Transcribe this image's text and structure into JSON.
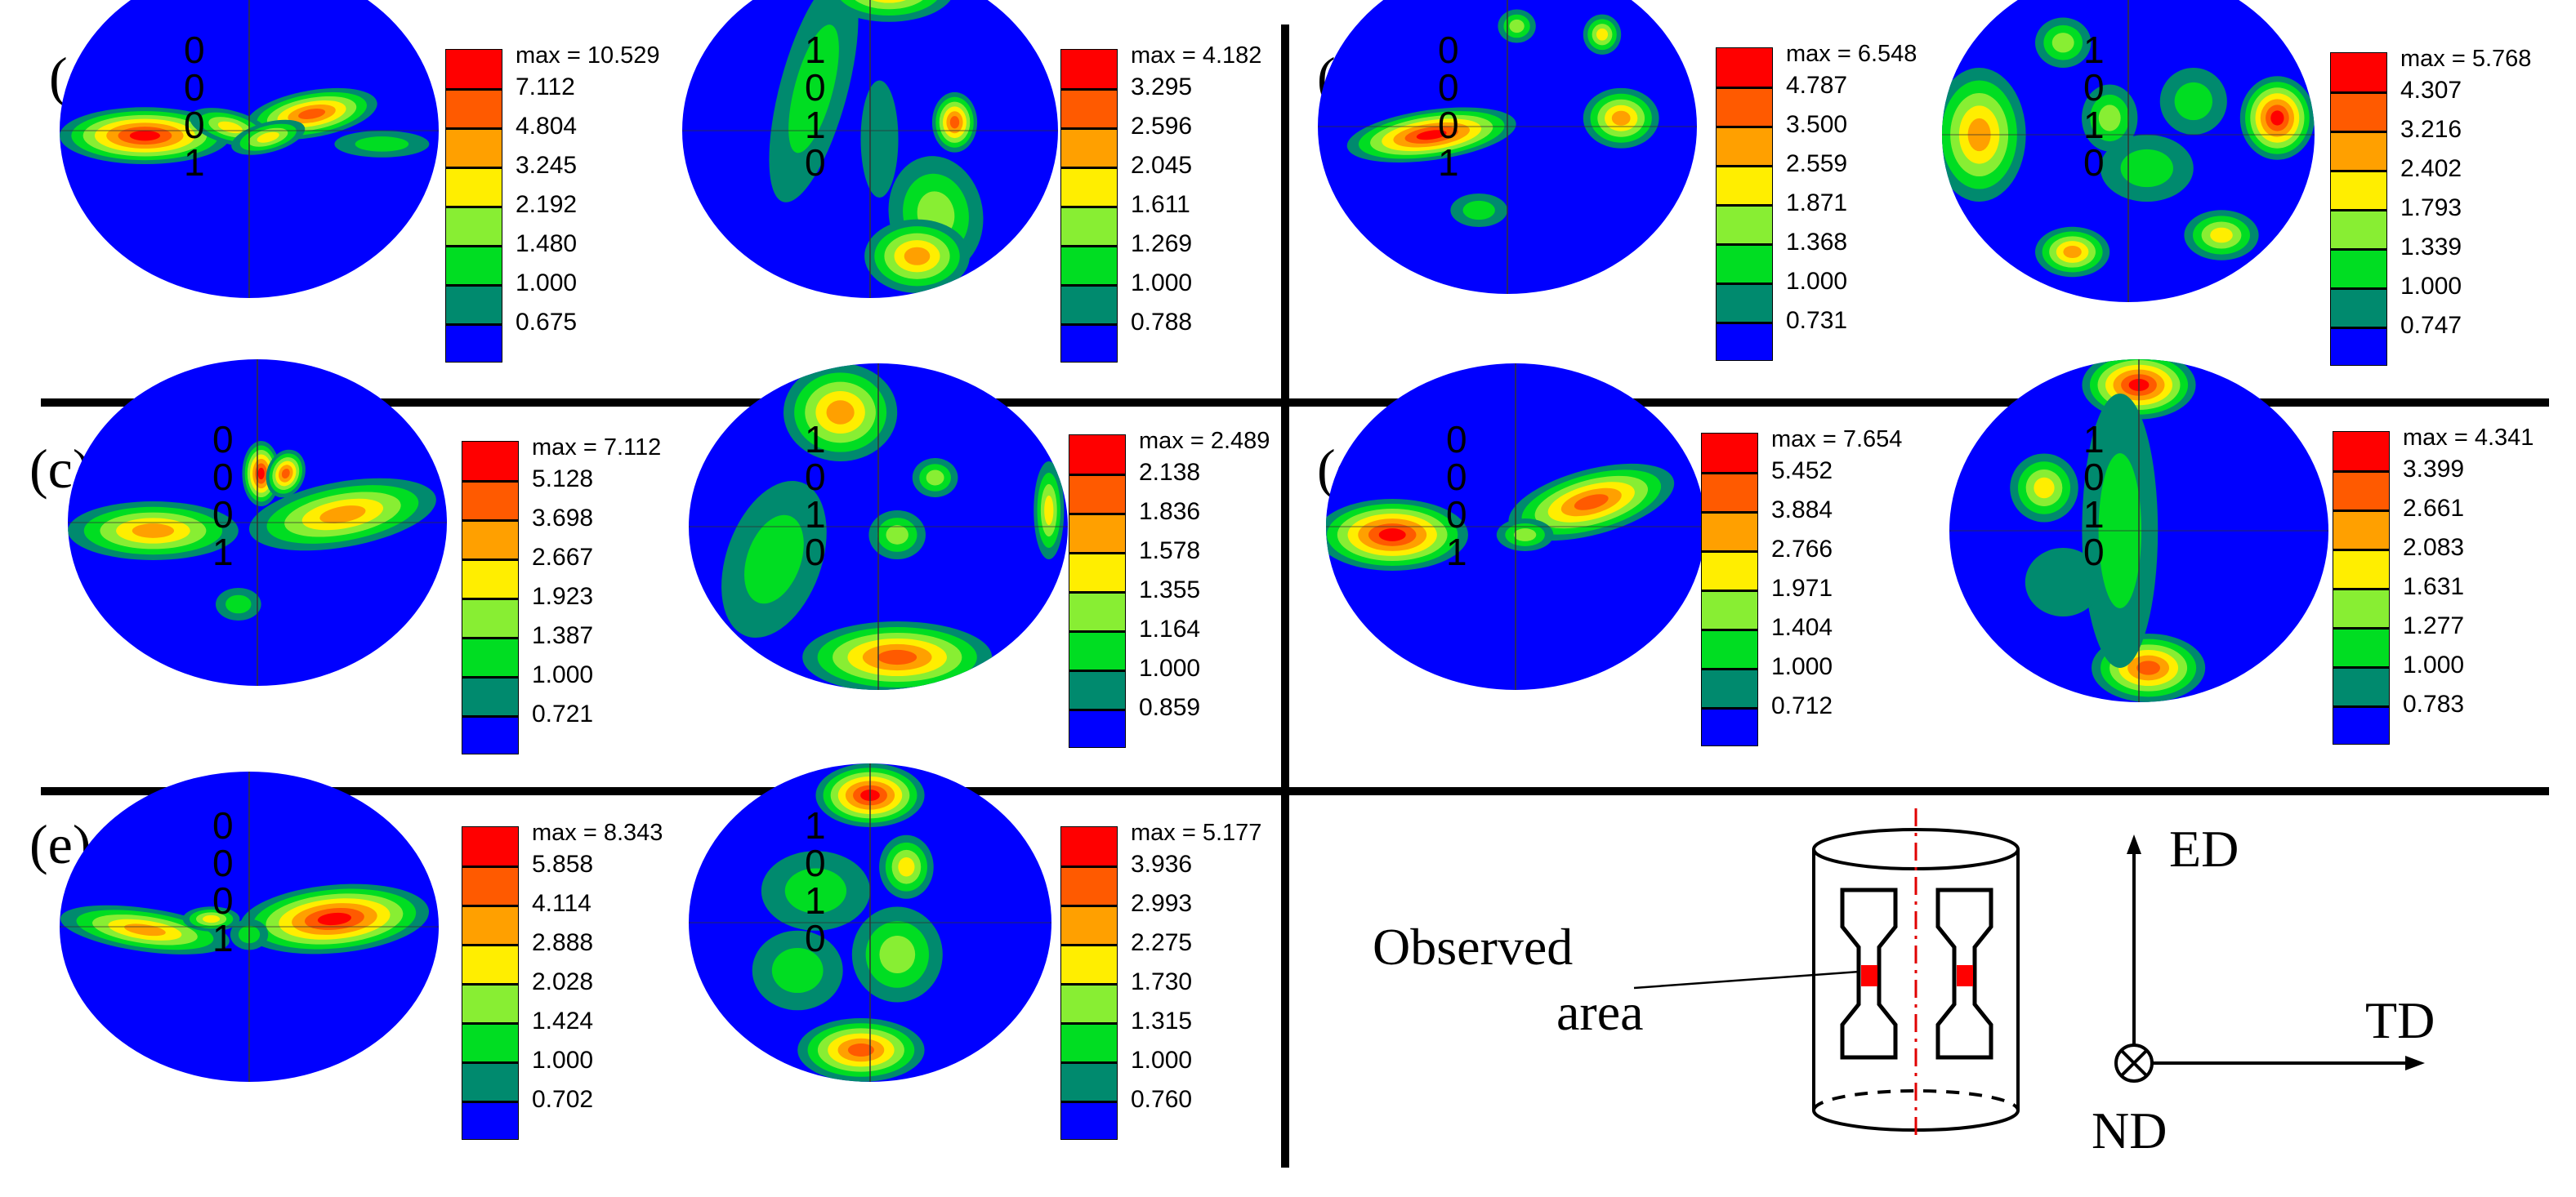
{
  "colors": {
    "blue": "#0000ff",
    "darkgreen": "#008a6e",
    "green": "#00dd22",
    "lightgreen": "#88ee33",
    "yellow": "#ffee00",
    "orange": "#ffa000",
    "darkorange": "#ff5a00",
    "red": "#ff0000"
  },
  "panels": [
    {
      "label": "(a)",
      "figures": [
        {
          "title": "0 0 0 1",
          "max": "max = 10.529",
          "ticks": [
            "7.112",
            "4.804",
            "3.245",
            "2.192",
            "1.480",
            "1.000",
            "0.675"
          ]
        },
        {
          "title": "1 0 1 0",
          "max": "max = 4.182",
          "ticks": [
            "3.295",
            "2.596",
            "2.045",
            "1.611",
            "1.269",
            "1.000",
            "0.788"
          ]
        }
      ]
    },
    {
      "label": "(b)",
      "figures": [
        {
          "title": "0 0 0 1",
          "max": "max = 6.548",
          "ticks": [
            "4.787",
            "3.500",
            "2.559",
            "1.871",
            "1.368",
            "1.000",
            "0.731"
          ]
        },
        {
          "title": "1 0 1 0",
          "max": "max = 5.768",
          "ticks": [
            "4.307",
            "3.216",
            "2.402",
            "1.793",
            "1.339",
            "1.000",
            "0.747"
          ]
        }
      ]
    },
    {
      "label": "(c)",
      "figures": [
        {
          "title": "0 0 0 1",
          "max": "max = 7.112",
          "ticks": [
            "5.128",
            "3.698",
            "2.667",
            "1.923",
            "1.387",
            "1.000",
            "0.721"
          ]
        },
        {
          "title": "1 0 1 0",
          "max": "max = 2.489",
          "ticks": [
            "2.138",
            "1.836",
            "1.578",
            "1.355",
            "1.164",
            "1.000",
            "0.859"
          ]
        }
      ]
    },
    {
      "label": "(d)",
      "figures": [
        {
          "title": "0 0 0 1",
          "max": "max = 7.654",
          "ticks": [
            "5.452",
            "3.884",
            "2.766",
            "1.971",
            "1.404",
            "1.000",
            "0.712"
          ]
        },
        {
          "title": "1 0 1 0",
          "max": "max = 4.341",
          "ticks": [
            "3.399",
            "2.661",
            "2.083",
            "1.631",
            "1.277",
            "1.000",
            "0.783"
          ]
        }
      ]
    },
    {
      "label": "(e)",
      "figures": [
        {
          "title": "0 0 0 1",
          "max": "max = 8.343",
          "ticks": [
            "5.858",
            "4.114",
            "2.888",
            "2.028",
            "1.424",
            "1.000",
            "0.702"
          ]
        },
        {
          "title": "1 0 1 0",
          "max": "max = 5.177",
          "ticks": [
            "3.936",
            "2.993",
            "2.275",
            "1.730",
            "1.315",
            "1.000",
            "0.760"
          ]
        }
      ]
    }
  ],
  "schematic": {
    "observed_label_line1": "Observed",
    "observed_label_line2": "area",
    "axis_ed": "ED",
    "axis_td": "TD",
    "axis_nd": "ND"
  }
}
